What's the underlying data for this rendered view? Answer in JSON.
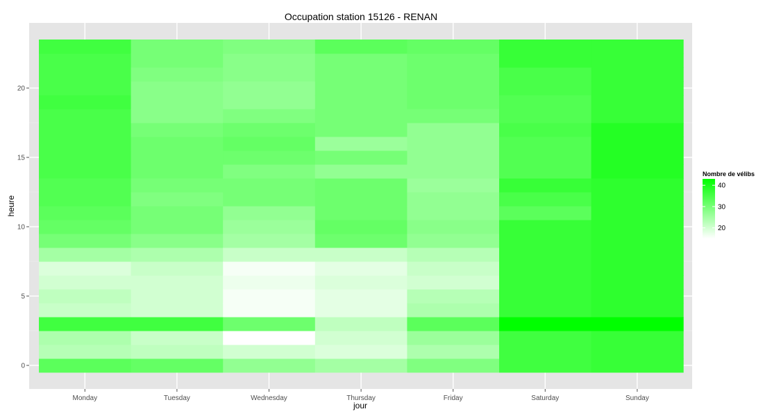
{
  "chart_data": {
    "type": "heatmap",
    "title": "Occupation station 15126 - RENAN",
    "xlabel": "jour",
    "ylabel": "heure",
    "x_categories": [
      "Monday",
      "Tuesday",
      "Wednesday",
      "Thursday",
      "Friday",
      "Saturday",
      "Sunday"
    ],
    "y_range": [
      -0.5,
      23.5
    ],
    "y_ticks": [
      0,
      5,
      10,
      15,
      20
    ],
    "grid": true,
    "legend": {
      "title": "Nombre de vélibs",
      "position": "right",
      "ticks": [
        20,
        30,
        40
      ],
      "min": 15,
      "max": 43,
      "low_color": "#ffffff",
      "high_color": "#00ff00"
    },
    "series": [
      {
        "day": "Monday",
        "values": [
          33,
          23,
          24,
          36,
          21,
          22,
          20,
          19,
          25,
          30,
          32,
          33,
          34,
          34,
          35,
          35,
          35,
          35,
          35,
          36,
          35,
          35,
          35,
          36
        ]
      },
      {
        "day": "Tuesday",
        "values": [
          32,
          22,
          21,
          36,
          20,
          20,
          20,
          21,
          24,
          28,
          30,
          30,
          29,
          30,
          31,
          31,
          31,
          30,
          28,
          28,
          28,
          29,
          30,
          30
        ]
      },
      {
        "day": "Wednesday",
        "values": [
          27,
          20,
          15,
          31,
          16,
          16,
          17,
          16,
          21,
          25,
          26,
          27,
          30,
          30,
          29,
          31,
          32,
          31,
          29,
          27,
          27,
          28,
          28,
          29
        ]
      },
      {
        "day": "Thursday",
        "values": [
          25,
          19,
          20,
          22,
          18,
          18,
          19,
          18,
          21,
          31,
          32,
          31,
          31,
          31,
          27,
          30,
          26,
          30,
          30,
          30,
          30,
          30,
          30,
          33
        ]
      },
      {
        "day": "Friday",
        "values": [
          29,
          24,
          26,
          33,
          24,
          23,
          20,
          21,
          23,
          27,
          28,
          27,
          27,
          26,
          27,
          27,
          27,
          27,
          30,
          31,
          31,
          31,
          31,
          32
        ]
      },
      {
        "day": "Saturday",
        "values": [
          36,
          36,
          36,
          43,
          37,
          37,
          37,
          37,
          37,
          37,
          37,
          33,
          35,
          37,
          34,
          34,
          34,
          35,
          34,
          34,
          35,
          35,
          37,
          37
        ]
      },
      {
        "day": "Sunday",
        "values": [
          37,
          37,
          37,
          43,
          38,
          38,
          38,
          38,
          38,
          38,
          38,
          38,
          38,
          38,
          39,
          39,
          39,
          39,
          37,
          37,
          37,
          37,
          37,
          37
        ]
      }
    ]
  }
}
